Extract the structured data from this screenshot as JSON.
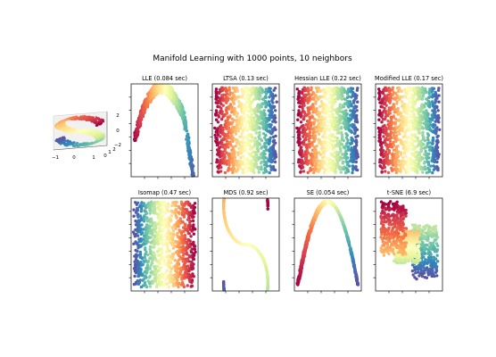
{
  "chart_data": [
    {
      "type": "scatter",
      "title": "Manifold Learning with 1000 points, 10 neighbors",
      "n_points": 1000,
      "n_neighbors": 10,
      "colormap": "Spectral",
      "colors": [
        "#9e0142",
        "#d53e4f",
        "#f46d43",
        "#fdae61",
        "#fee08b",
        "#ffffbf",
        "#e6f598",
        "#abdda4",
        "#66c2a5",
        "#3288bd",
        "#5e4fa2"
      ],
      "panels": [
        {
          "key": "input",
          "title": "",
          "kind": "scurve3d",
          "x_ticks": [
            "−1",
            "0",
            "1"
          ],
          "y_ticks": [
            "0",
            "1",
            "2"
          ],
          "z_ticks": [
            "−2",
            "0",
            "2"
          ]
        },
        {
          "key": "lle",
          "title": "LLE (0.084 sec)",
          "method": "LLE",
          "time_sec": 0.084,
          "kind": "arch"
        },
        {
          "key": "ltsa",
          "title": "LTSA (0.13 sec)",
          "method": "LTSA",
          "time_sec": 0.13,
          "kind": "stripes"
        },
        {
          "key": "hessian",
          "title": "Hessian LLE (0.22 sec)",
          "method": "Hessian LLE",
          "time_sec": 0.22,
          "kind": "stripes"
        },
        {
          "key": "modified",
          "title": "Modified LLE (0.17 sec)",
          "method": "Modified LLE",
          "time_sec": 0.17,
          "kind": "stripes"
        },
        {
          "key": "isomap",
          "title": "Isomap (0.47 sec)",
          "method": "Isomap",
          "time_sec": 0.47,
          "kind": "stripes_rev"
        },
        {
          "key": "mds",
          "title": "MDS (0.92 sec)",
          "method": "MDS",
          "time_sec": 0.92,
          "kind": "scurve2d"
        },
        {
          "key": "se",
          "title": "SE (0.054 sec)",
          "method": "SE",
          "time_sec": 0.054,
          "kind": "parabola"
        },
        {
          "key": "tsne",
          "title": "t-SNE (6.9 sec)",
          "method": "t-SNE",
          "time_sec": 6.9,
          "kind": "tsne"
        }
      ]
    }
  ]
}
